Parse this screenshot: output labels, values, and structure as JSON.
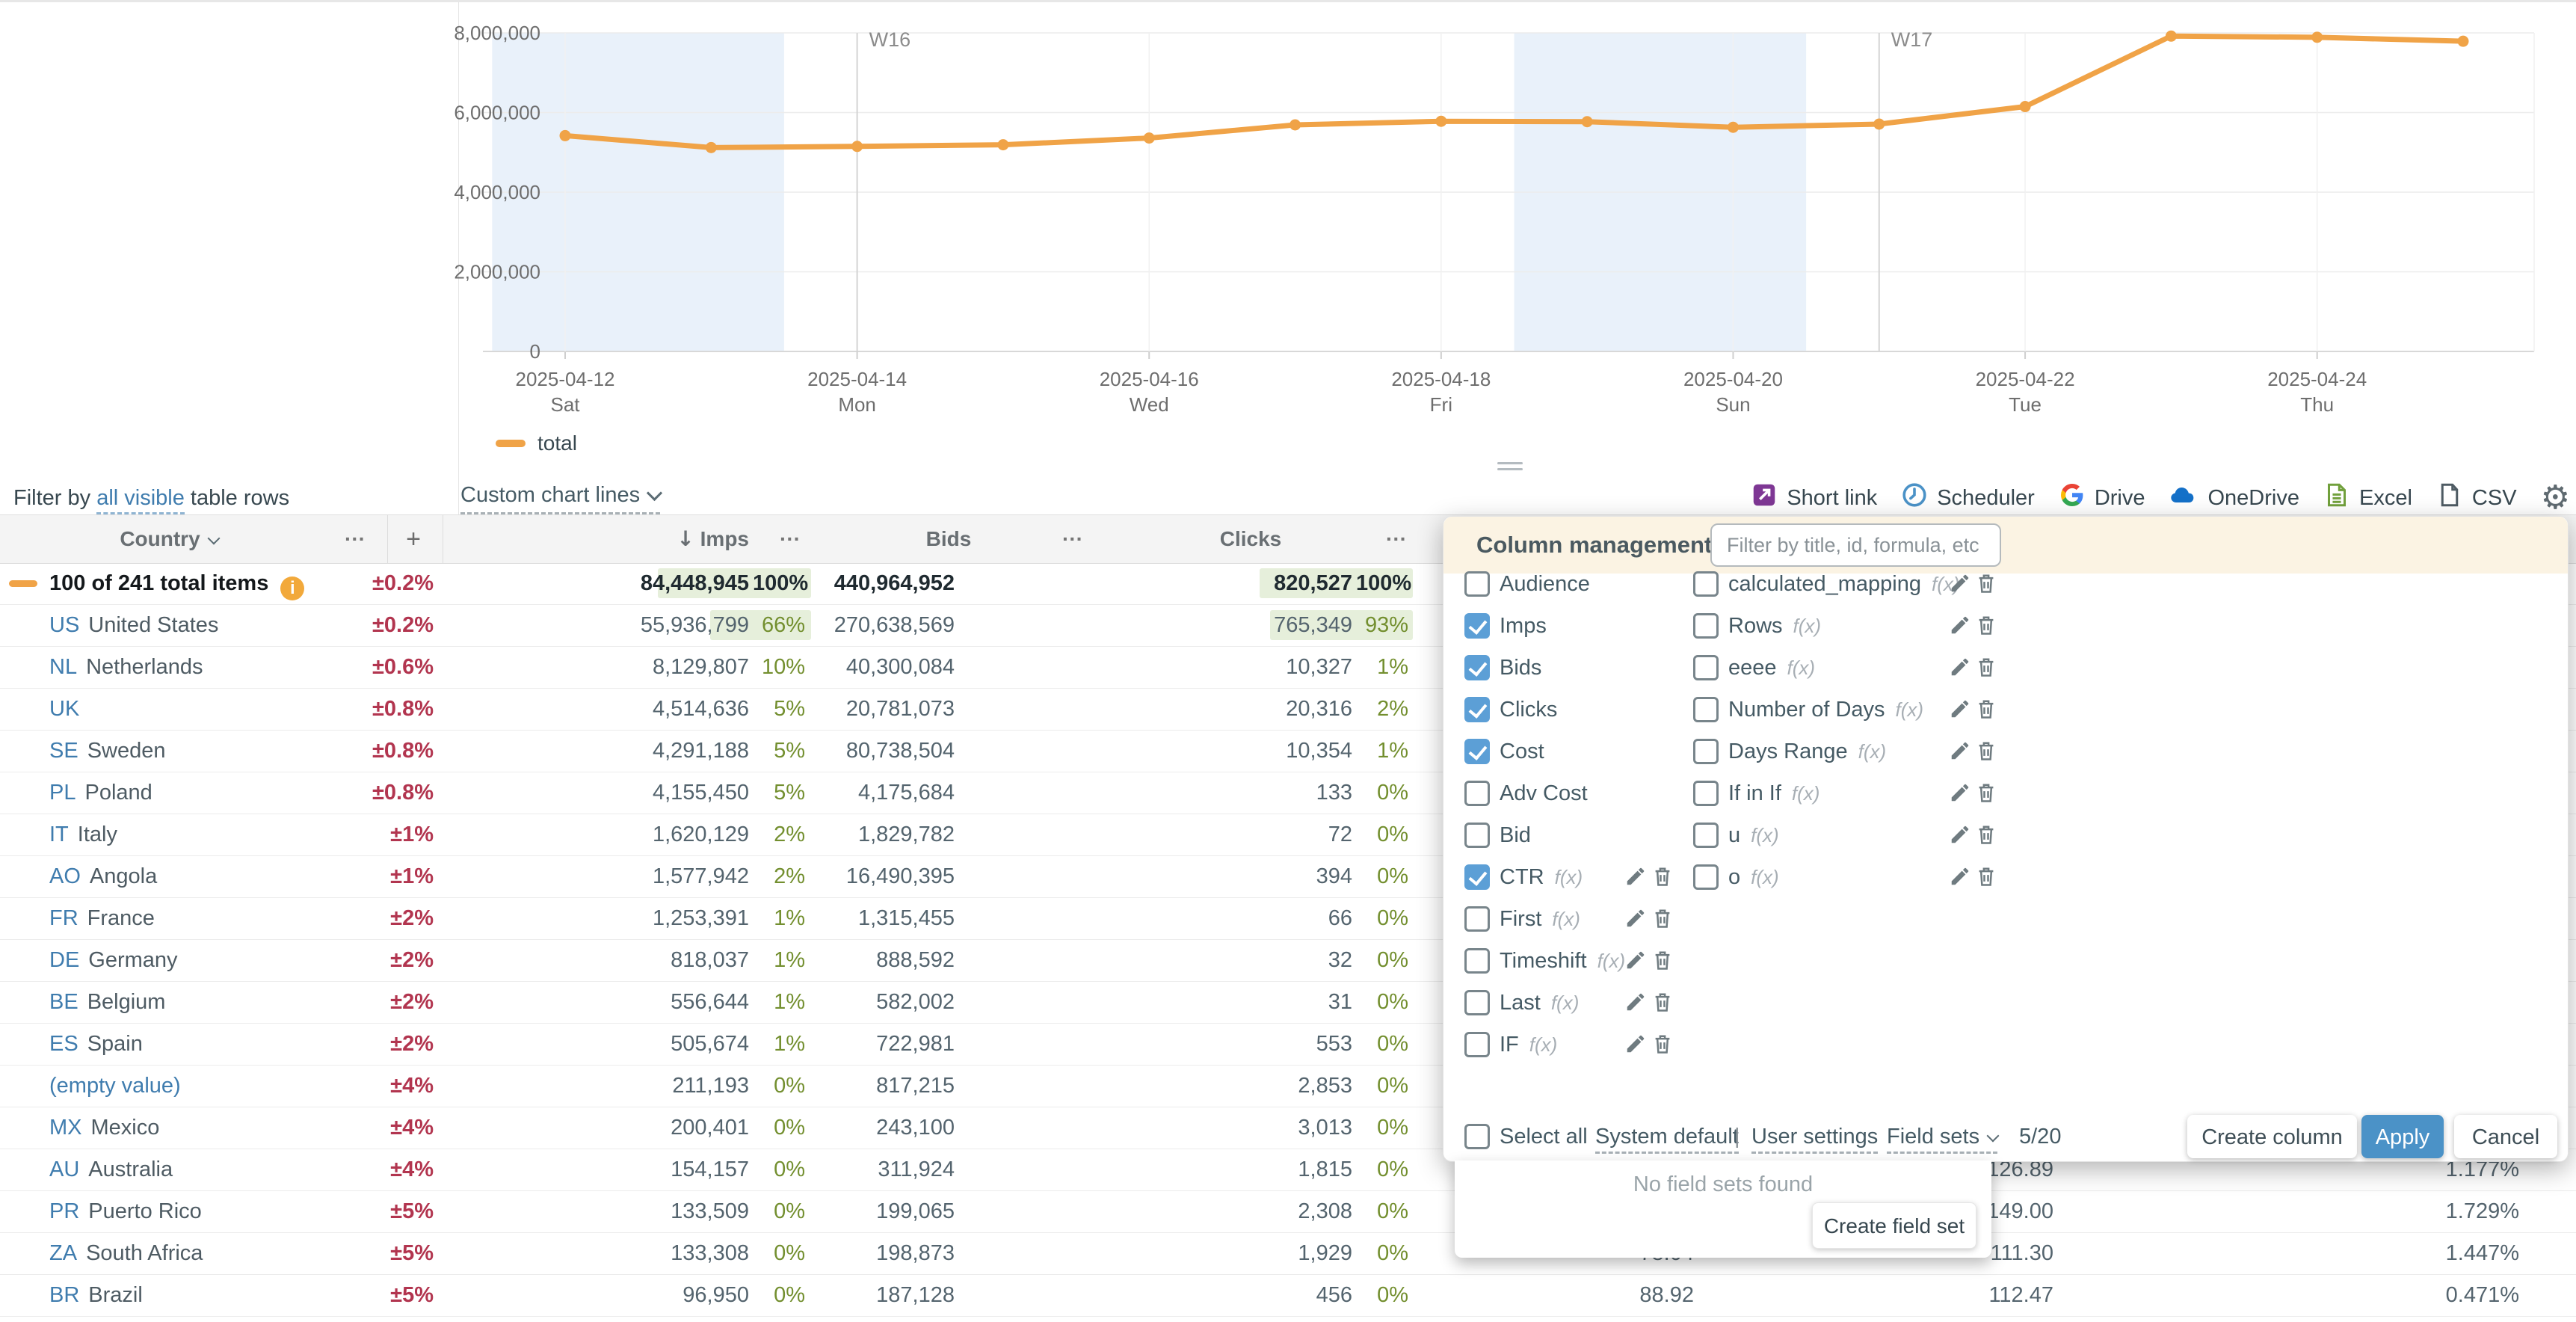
{
  "filter_bar": {
    "prefix": "Filter by ",
    "link": "all visible",
    "suffix": " table rows"
  },
  "chart_controls": {
    "custom_lines_label": "Custom chart lines"
  },
  "chart_data": {
    "type": "line",
    "x": [
      "2025-04-12",
      "2025-04-13",
      "2025-04-14",
      "2025-04-15",
      "2025-04-16",
      "2025-04-17",
      "2025-04-18",
      "2025-04-19",
      "2025-04-20",
      "2025-04-21",
      "2025-04-22",
      "2025-04-23",
      "2025-04-24",
      "2025-04-25"
    ],
    "series": [
      {
        "name": "total",
        "color": "#F0A347",
        "values": [
          5420000,
          5120000,
          5150000,
          5190000,
          5360000,
          5690000,
          5780000,
          5770000,
          5630000,
          5710000,
          6150000,
          7920000,
          7890000,
          7790000
        ]
      }
    ],
    "ylim": [
      0,
      8000000
    ],
    "yticks": [
      0,
      2000000,
      4000000,
      6000000,
      8000000
    ],
    "xticks": [
      {
        "date": "2025-04-12",
        "day": "Sat"
      },
      {
        "date": "2025-04-14",
        "day": "Mon"
      },
      {
        "date": "2025-04-16",
        "day": "Wed"
      },
      {
        "date": "2025-04-18",
        "day": "Fri"
      },
      {
        "date": "2025-04-20",
        "day": "Sun"
      },
      {
        "date": "2025-04-22",
        "day": "Tue"
      },
      {
        "date": "2025-04-24",
        "day": "Thu"
      }
    ],
    "week_markers": [
      {
        "label": "W16",
        "date": "2025-04-14"
      },
      {
        "label": "W17",
        "date": "2025-04-21"
      }
    ],
    "weekend_bands": [
      [
        "2025-04-12",
        "2025-04-13"
      ],
      [
        "2025-04-19",
        "2025-04-20"
      ]
    ],
    "grid": true,
    "legend_position": "bottom-left",
    "weekend_band_color": "#E9F1FA"
  },
  "toolbar": {
    "items": [
      {
        "id": "short-link",
        "label": "Short link"
      },
      {
        "id": "scheduler",
        "label": "Scheduler"
      },
      {
        "id": "drive",
        "label": "Drive"
      },
      {
        "id": "onedrive",
        "label": "OneDrive"
      },
      {
        "id": "excel",
        "label": "Excel"
      },
      {
        "id": "csv",
        "label": "CSV"
      }
    ],
    "gear_icon": "⚙"
  },
  "table": {
    "header": {
      "country": "Country",
      "more": "···",
      "add": "+",
      "sort_arrow": "↓",
      "imps": "Imps",
      "bids": "Bids",
      "clicks": "Clicks"
    },
    "total_info_icon": "i",
    "rows": [
      {
        "type": "total",
        "label": "100 of 241 total items",
        "pm": "±0.2%",
        "imps": "84,448,945",
        "imps_pct": "100%",
        "imps_fill": 1,
        "bids": "440,964,952",
        "clicks": "820,527",
        "clicks_pct": "100%",
        "clicks_fill": 1
      },
      {
        "code": "US",
        "name": "United States",
        "pm": "±0.2%",
        "imps": "55,936,799",
        "imps_pct": "66%",
        "imps_fill": 0.66,
        "bids": "270,638,569",
        "clicks": "765,349",
        "clicks_pct": "93%",
        "clicks_fill": 0.93
      },
      {
        "code": "NL",
        "name": "Netherlands",
        "pm": "±0.6%",
        "imps": "8,129,807",
        "imps_pct": "10%",
        "bids": "40,300,084",
        "clicks": "10,327",
        "clicks_pct": "1%"
      },
      {
        "code": "UK",
        "name": "",
        "pm": "±0.8%",
        "imps": "4,514,636",
        "imps_pct": "5%",
        "bids": "20,781,073",
        "clicks": "20,316",
        "clicks_pct": "2%"
      },
      {
        "code": "SE",
        "name": "Sweden",
        "pm": "±0.8%",
        "imps": "4,291,188",
        "imps_pct": "5%",
        "bids": "80,738,504",
        "clicks": "10,354",
        "clicks_pct": "1%"
      },
      {
        "code": "PL",
        "name": "Poland",
        "pm": "±0.8%",
        "imps": "4,155,450",
        "imps_pct": "5%",
        "bids": "4,175,684",
        "clicks": "133",
        "clicks_pct": "0%"
      },
      {
        "code": "IT",
        "name": "Italy",
        "pm": "±1%",
        "imps": "1,620,129",
        "imps_pct": "2%",
        "bids": "1,829,782",
        "clicks": "72",
        "clicks_pct": "0%"
      },
      {
        "code": "AO",
        "name": "Angola",
        "pm": "±1%",
        "imps": "1,577,942",
        "imps_pct": "2%",
        "bids": "16,490,395",
        "clicks": "394",
        "clicks_pct": "0%"
      },
      {
        "code": "FR",
        "name": "France",
        "pm": "±2%",
        "imps": "1,253,391",
        "imps_pct": "1%",
        "bids": "1,315,455",
        "clicks": "66",
        "clicks_pct": "0%"
      },
      {
        "code": "DE",
        "name": "Germany",
        "pm": "±2%",
        "imps": "818,037",
        "imps_pct": "1%",
        "bids": "888,592",
        "clicks": "32",
        "clicks_pct": "0%"
      },
      {
        "code": "BE",
        "name": "Belgium",
        "pm": "±2%",
        "imps": "556,644",
        "imps_pct": "1%",
        "bids": "582,002",
        "clicks": "31",
        "clicks_pct": "0%"
      },
      {
        "code": "ES",
        "name": "Spain",
        "pm": "±2%",
        "imps": "505,674",
        "imps_pct": "1%",
        "bids": "722,981",
        "clicks": "553",
        "clicks_pct": "0%"
      },
      {
        "code": "(empty value)",
        "name": "",
        "pm": "±4%",
        "imps": "211,193",
        "imps_pct": "0%",
        "bids": "817,215",
        "clicks": "2,853",
        "clicks_pct": "0%"
      },
      {
        "code": "MX",
        "name": "Mexico",
        "pm": "±4%",
        "imps": "200,401",
        "imps_pct": "0%",
        "bids": "243,100",
        "clicks": "3,013",
        "clicks_pct": "0%"
      },
      {
        "code": "AU",
        "name": "Australia",
        "pm": "±4%",
        "imps": "154,157",
        "imps_pct": "0%",
        "bids": "311,924",
        "clicks": "1,815",
        "clicks_pct": "0%",
        "extra_b": "126.89",
        "extra_c": "1.177%"
      },
      {
        "code": "PR",
        "name": "Puerto Rico",
        "pm": "±5%",
        "imps": "133,509",
        "imps_pct": "0%",
        "bids": "199,065",
        "clicks": "2,308",
        "clicks_pct": "0%",
        "extra_b": "149.00",
        "extra_c": "1.729%"
      },
      {
        "code": "ZA",
        "name": "South Africa",
        "pm": "±5%",
        "imps": "133,308",
        "imps_pct": "0%",
        "bids": "198,873",
        "clicks": "1,929",
        "clicks_pct": "0%",
        "extra_a": "78.04",
        "extra_b": "111.30",
        "extra_c": "1.447%"
      },
      {
        "code": "BR",
        "name": "Brazil",
        "pm": "±5%",
        "imps": "96,950",
        "imps_pct": "0%",
        "bids": "187,128",
        "clicks": "456",
        "clicks_pct": "0%",
        "extra_a": "88.92",
        "extra_b": "112.47",
        "extra_c": "0.471%"
      }
    ]
  },
  "panel": {
    "title": "Column management",
    "filter_placeholder": "Filter by title, id, formula, etc",
    "fx_label": "f(x)",
    "left_items": [
      {
        "label": "Audience",
        "checked": false,
        "fx": false,
        "actions": false
      },
      {
        "label": "Imps",
        "checked": true,
        "fx": false,
        "actions": false
      },
      {
        "label": "Bids",
        "checked": true,
        "fx": false,
        "actions": false
      },
      {
        "label": "Clicks",
        "checked": true,
        "fx": false,
        "actions": false
      },
      {
        "label": "Cost",
        "checked": true,
        "fx": false,
        "actions": false
      },
      {
        "label": "Adv Cost",
        "checked": false,
        "fx": false,
        "actions": false
      },
      {
        "label": "Bid",
        "checked": false,
        "fx": false,
        "actions": false
      },
      {
        "label": "CTR",
        "checked": true,
        "fx": true,
        "actions": true
      },
      {
        "label": "First",
        "checked": false,
        "fx": true,
        "actions": true
      },
      {
        "label": "Timeshift",
        "checked": false,
        "fx": true,
        "actions": true
      },
      {
        "label": "Last",
        "checked": false,
        "fx": true,
        "actions": true
      },
      {
        "label": "IF",
        "checked": false,
        "fx": true,
        "actions": true
      }
    ],
    "right_items": [
      {
        "label": "calculated_mapping",
        "checked": false,
        "fx": true,
        "actions": true
      },
      {
        "label": "Rows",
        "checked": false,
        "fx": true,
        "actions": true
      },
      {
        "label": "eeee",
        "checked": false,
        "fx": true,
        "actions": true
      },
      {
        "label": "Number of Days",
        "checked": false,
        "fx": true,
        "actions": true
      },
      {
        "label": "Days Range",
        "checked": false,
        "fx": true,
        "actions": true
      },
      {
        "label": "If in If",
        "checked": false,
        "fx": true,
        "actions": true
      },
      {
        "label": "u",
        "checked": false,
        "fx": true,
        "actions": true
      },
      {
        "label": "o",
        "checked": false,
        "fx": true,
        "actions": true
      }
    ],
    "footer": {
      "select_all_label": "Select all",
      "system_default_label": "System default",
      "separator": "|",
      "user_settings_label": "User settings",
      "field_sets_label": "Field sets",
      "counter": "5/20",
      "create_column_label": "Create column",
      "apply_label": "Apply",
      "cancel_label": "Cancel"
    },
    "fieldset_popup": {
      "empty_label": "No field sets found",
      "create_label": "Create field set"
    }
  }
}
